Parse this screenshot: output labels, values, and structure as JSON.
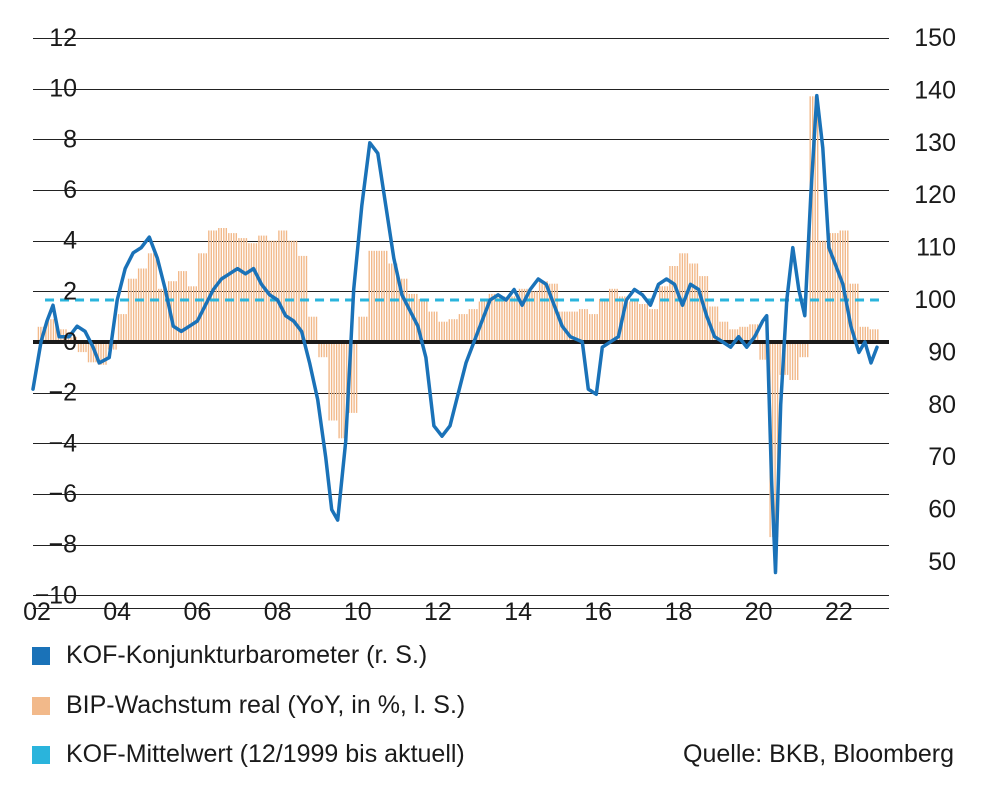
{
  "chart_data": {
    "type": "bar+line",
    "title": "",
    "xlabel": "",
    "ylabel_left": "",
    "ylabel_right": "",
    "x_tick_labels": [
      "02",
      "04",
      "06",
      "08",
      "10",
      "12",
      "14",
      "16",
      "18",
      "20",
      "22"
    ],
    "left_axis": {
      "ticks": [
        "12",
        "10",
        "8",
        "6",
        "4",
        "2",
        "0",
        "−2",
        "−4",
        "−6",
        "−8",
        "−10"
      ],
      "ylim": [
        -10.5,
        12
      ]
    },
    "right_axis": {
      "ticks": [
        "150",
        "140",
        "130",
        "120",
        "110",
        "100",
        "90",
        "80",
        "70",
        "60",
        "50"
      ],
      "ylim": [
        46,
        150
      ]
    },
    "grid": "horizontal",
    "colors": {
      "kof": "#1a72b8",
      "gdp": "#f2b98a",
      "mean": "#2ab4dc",
      "zero": "#1a1a1a",
      "grid": "#222222"
    },
    "series": [
      {
        "name": "BIP-Wachstum real (YoY, in %, l. S.)",
        "type": "bar",
        "axis": "left",
        "points": [
          [
            2002.12,
            0.6
          ],
          [
            2002.37,
            0.9
          ],
          [
            2002.62,
            0.5
          ],
          [
            2002.87,
            0.2
          ],
          [
            2003.12,
            -0.4
          ],
          [
            2003.37,
            -0.8
          ],
          [
            2003.62,
            -0.9
          ],
          [
            2003.87,
            -0.3
          ],
          [
            2004.12,
            1.1
          ],
          [
            2004.37,
            2.5
          ],
          [
            2004.62,
            2.9
          ],
          [
            2004.87,
            3.5
          ],
          [
            2005.12,
            2.1
          ],
          [
            2005.37,
            2.4
          ],
          [
            2005.62,
            2.8
          ],
          [
            2005.87,
            2.2
          ],
          [
            2006.12,
            3.5
          ],
          [
            2006.37,
            4.4
          ],
          [
            2006.62,
            4.5
          ],
          [
            2006.87,
            4.3
          ],
          [
            2007.12,
            4.1
          ],
          [
            2007.37,
            3.9
          ],
          [
            2007.62,
            4.2
          ],
          [
            2007.87,
            4.0
          ],
          [
            2008.12,
            4.4
          ],
          [
            2008.37,
            4.0
          ],
          [
            2008.62,
            3.4
          ],
          [
            2008.87,
            1.0
          ],
          [
            2009.12,
            -0.6
          ],
          [
            2009.37,
            -3.1
          ],
          [
            2009.62,
            -3.8
          ],
          [
            2009.87,
            -2.8
          ],
          [
            2010.12,
            1.0
          ],
          [
            2010.37,
            3.6
          ],
          [
            2010.62,
            3.6
          ],
          [
            2010.87,
            3.1
          ],
          [
            2011.12,
            2.5
          ],
          [
            2011.37,
            1.9
          ],
          [
            2011.62,
            1.7
          ],
          [
            2011.87,
            1.2
          ],
          [
            2012.12,
            0.8
          ],
          [
            2012.37,
            0.9
          ],
          [
            2012.62,
            1.1
          ],
          [
            2012.87,
            1.3
          ],
          [
            2013.12,
            1.6
          ],
          [
            2013.37,
            1.9
          ],
          [
            2013.62,
            1.8
          ],
          [
            2013.87,
            1.8
          ],
          [
            2014.12,
            2.1
          ],
          [
            2014.37,
            2.0
          ],
          [
            2014.62,
            2.4
          ],
          [
            2014.87,
            2.3
          ],
          [
            2015.12,
            1.2
          ],
          [
            2015.37,
            1.2
          ],
          [
            2015.62,
            1.3
          ],
          [
            2015.87,
            1.1
          ],
          [
            2016.12,
            1.7
          ],
          [
            2016.37,
            2.1
          ],
          [
            2016.62,
            1.8
          ],
          [
            2016.87,
            1.6
          ],
          [
            2017.12,
            1.5
          ],
          [
            2017.37,
            1.3
          ],
          [
            2017.62,
            2.2
          ],
          [
            2017.87,
            3.0
          ],
          [
            2018.12,
            3.5
          ],
          [
            2018.37,
            3.1
          ],
          [
            2018.62,
            2.6
          ],
          [
            2018.87,
            1.4
          ],
          [
            2019.12,
            0.8
          ],
          [
            2019.37,
            0.5
          ],
          [
            2019.62,
            0.6
          ],
          [
            2019.87,
            0.7
          ],
          [
            2020.12,
            -0.7
          ],
          [
            2020.37,
            -7.7
          ],
          [
            2020.62,
            -1.3
          ],
          [
            2020.87,
            -1.5
          ],
          [
            2021.12,
            -0.6
          ],
          [
            2021.37,
            9.7
          ],
          [
            2021.62,
            4.0
          ],
          [
            2021.87,
            4.3
          ],
          [
            2022.12,
            4.4
          ],
          [
            2022.37,
            2.3
          ],
          [
            2022.62,
            0.6
          ],
          [
            2022.87,
            0.5
          ]
        ]
      },
      {
        "name": "KOF-Konjunkturbarometer (r. S.)",
        "type": "line",
        "axis": "right",
        "points": [
          [
            2001.9,
            83
          ],
          [
            2002.1,
            92
          ],
          [
            2002.25,
            96
          ],
          [
            2002.4,
            99
          ],
          [
            2002.55,
            93
          ],
          [
            2002.8,
            93
          ],
          [
            2003.0,
            95
          ],
          [
            2003.2,
            94
          ],
          [
            2003.4,
            91
          ],
          [
            2003.55,
            88
          ],
          [
            2003.8,
            89
          ],
          [
            2004.0,
            100
          ],
          [
            2004.2,
            106
          ],
          [
            2004.4,
            109
          ],
          [
            2004.6,
            110
          ],
          [
            2004.8,
            112
          ],
          [
            2005.0,
            108
          ],
          [
            2005.2,
            102
          ],
          [
            2005.4,
            95
          ],
          [
            2005.6,
            94
          ],
          [
            2005.8,
            95
          ],
          [
            2006.0,
            96
          ],
          [
            2006.2,
            99
          ],
          [
            2006.4,
            102
          ],
          [
            2006.6,
            104
          ],
          [
            2006.8,
            105
          ],
          [
            2007.0,
            106
          ],
          [
            2007.2,
            105
          ],
          [
            2007.4,
            106
          ],
          [
            2007.6,
            103
          ],
          [
            2007.8,
            101
          ],
          [
            2008.0,
            100
          ],
          [
            2008.2,
            97
          ],
          [
            2008.4,
            96
          ],
          [
            2008.6,
            94
          ],
          [
            2008.8,
            88
          ],
          [
            2009.0,
            81
          ],
          [
            2009.2,
            70
          ],
          [
            2009.35,
            60
          ],
          [
            2009.5,
            58
          ],
          [
            2009.7,
            73
          ],
          [
            2009.9,
            102
          ],
          [
            2010.1,
            118
          ],
          [
            2010.3,
            130
          ],
          [
            2010.5,
            128
          ],
          [
            2010.7,
            118
          ],
          [
            2010.9,
            108
          ],
          [
            2011.1,
            101
          ],
          [
            2011.3,
            98
          ],
          [
            2011.5,
            95
          ],
          [
            2011.7,
            89
          ],
          [
            2011.9,
            76
          ],
          [
            2012.1,
            74
          ],
          [
            2012.3,
            76
          ],
          [
            2012.5,
            82
          ],
          [
            2012.7,
            88
          ],
          [
            2012.9,
            92
          ],
          [
            2013.1,
            96
          ],
          [
            2013.3,
            100
          ],
          [
            2013.5,
            101
          ],
          [
            2013.7,
            100
          ],
          [
            2013.9,
            102
          ],
          [
            2014.1,
            99
          ],
          [
            2014.3,
            102
          ],
          [
            2014.5,
            104
          ],
          [
            2014.7,
            103
          ],
          [
            2014.9,
            99
          ],
          [
            2015.1,
            95
          ],
          [
            2015.3,
            93
          ],
          [
            2015.6,
            92
          ],
          [
            2015.75,
            83
          ],
          [
            2015.95,
            82
          ],
          [
            2016.1,
            91
          ],
          [
            2016.3,
            92
          ],
          [
            2016.5,
            93
          ],
          [
            2016.7,
            100
          ],
          [
            2016.9,
            102
          ],
          [
            2017.1,
            101
          ],
          [
            2017.3,
            99
          ],
          [
            2017.5,
            103
          ],
          [
            2017.7,
            104
          ],
          [
            2017.9,
            103
          ],
          [
            2018.1,
            99
          ],
          [
            2018.3,
            103
          ],
          [
            2018.5,
            102
          ],
          [
            2018.7,
            97
          ],
          [
            2018.9,
            93
          ],
          [
            2019.1,
            92
          ],
          [
            2019.3,
            91
          ],
          [
            2019.5,
            93
          ],
          [
            2019.7,
            91
          ],
          [
            2019.9,
            93
          ],
          [
            2020.1,
            96
          ],
          [
            2020.2,
            97
          ],
          [
            2020.32,
            66
          ],
          [
            2020.42,
            48
          ],
          [
            2020.55,
            80
          ],
          [
            2020.7,
            100
          ],
          [
            2020.85,
            110
          ],
          [
            2021.0,
            102
          ],
          [
            2021.15,
            97
          ],
          [
            2021.3,
            120
          ],
          [
            2021.45,
            139
          ],
          [
            2021.6,
            129
          ],
          [
            2021.75,
            110
          ],
          [
            2021.9,
            107
          ],
          [
            2022.1,
            103
          ],
          [
            2022.3,
            95
          ],
          [
            2022.5,
            90
          ],
          [
            2022.65,
            92
          ],
          [
            2022.8,
            88
          ],
          [
            2022.95,
            91
          ]
        ]
      },
      {
        "name": "KOF-Mittelwert (12/1999 bis aktuell)",
        "type": "line",
        "axis": "right",
        "dashed": true,
        "points": [
          [
            2002.2,
            100
          ],
          [
            2023.0,
            100
          ]
        ]
      }
    ]
  },
  "legend": {
    "kof": "KOF-Konjunkturbarometer (r. S.)",
    "gdp": "BIP-Wachstum real (YoY, in %, l. S.)",
    "mean": "KOF-Mittelwert (12/1999 bis aktuell)"
  },
  "source": "Quelle: BKB, Bloomberg"
}
